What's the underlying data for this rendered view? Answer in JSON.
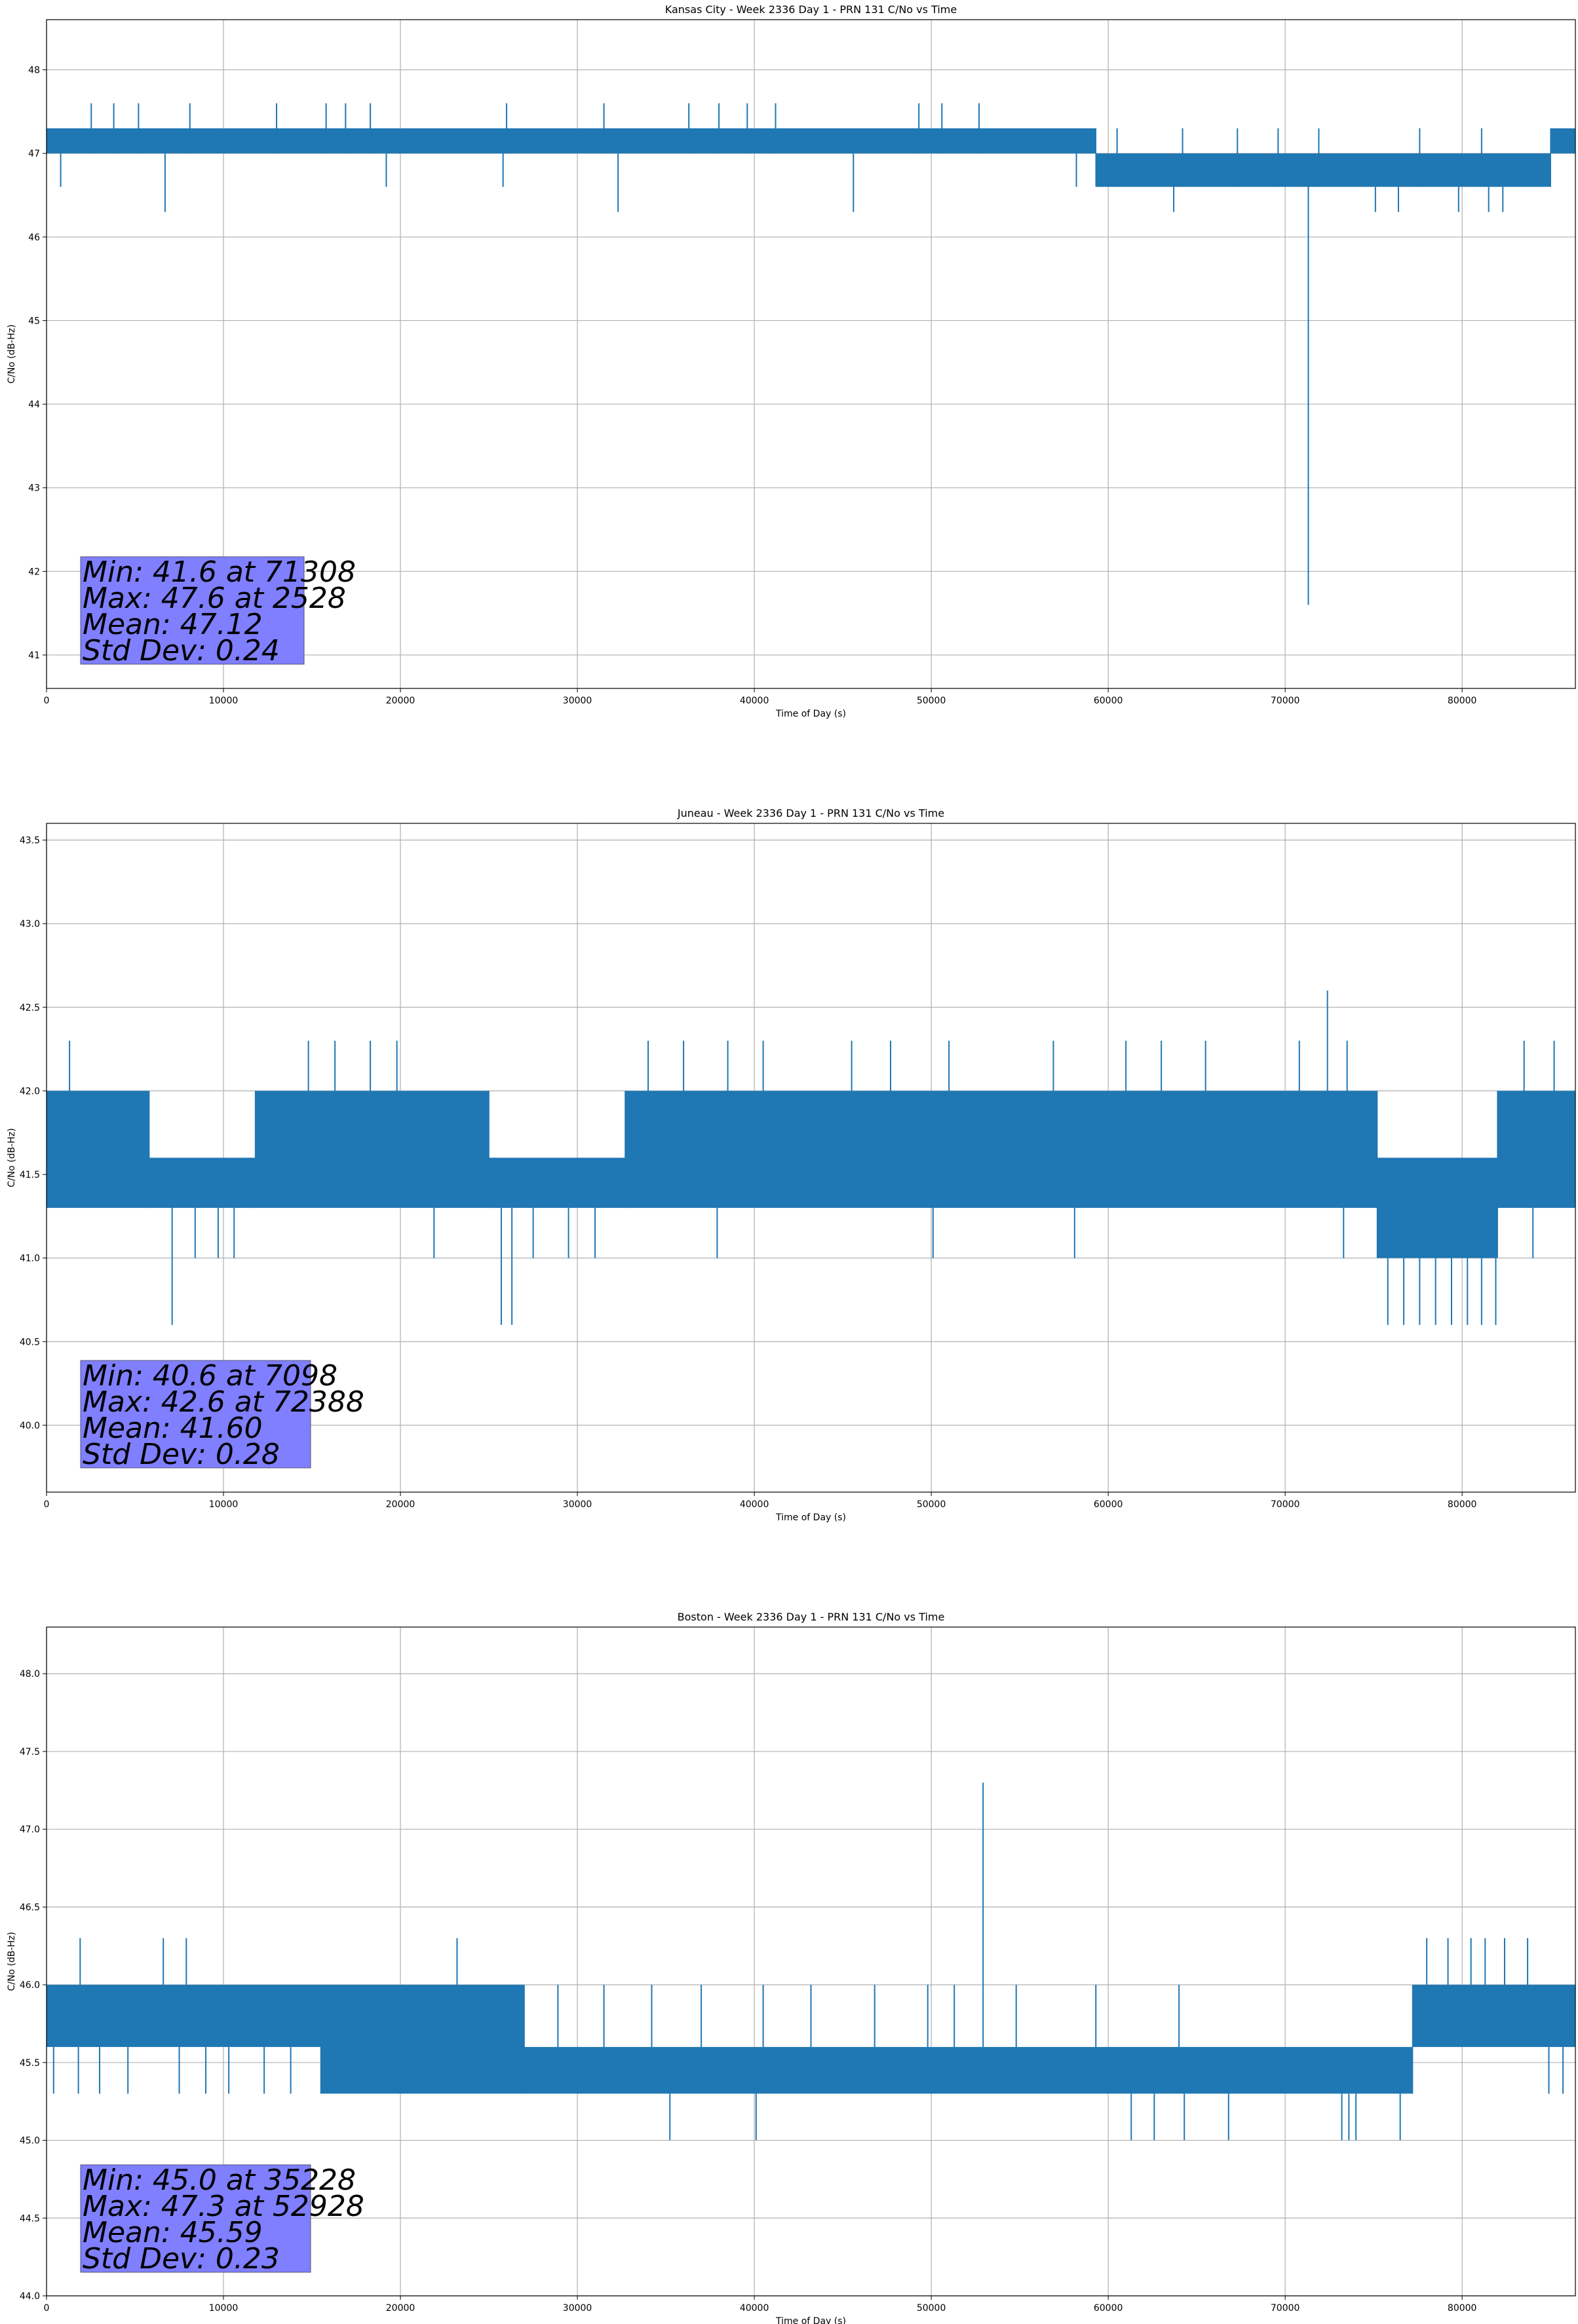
{
  "chart_data": [
    {
      "type": "line",
      "title": "Kansas City - Week 2336 Day 1 - PRN 131 C/No vs Time",
      "xlabel": "Time of Day (s)",
      "ylabel": "C/No (dB-Hz)",
      "xlim": [
        0,
        86400
      ],
      "ylim": [
        40.6,
        48.6
      ],
      "xticks": [
        0,
        10000,
        20000,
        30000,
        40000,
        50000,
        60000,
        70000,
        80000
      ],
      "yticks": [
        41,
        42,
        43,
        44,
        45,
        46,
        47,
        48
      ],
      "grid": true,
      "color": "#1f77b4",
      "bands": [
        {
          "x0": 0,
          "x1": 59300,
          "lo": 47.0,
          "hi": 47.3
        },
        {
          "x0": 59300,
          "x1": 85000,
          "lo": 46.6,
          "hi": 47.0
        },
        {
          "x0": 85000,
          "x1": 86400,
          "lo": 47.0,
          "hi": 47.3
        }
      ],
      "spikes": [
        {
          "x": 2528,
          "lo": 47.0,
          "hi": 47.6
        },
        {
          "x": 3800,
          "lo": 47.0,
          "hi": 47.6
        },
        {
          "x": 5200,
          "lo": 47.0,
          "hi": 47.6
        },
        {
          "x": 8100,
          "lo": 47.0,
          "hi": 47.6
        },
        {
          "x": 13000,
          "lo": 47.0,
          "hi": 47.6
        },
        {
          "x": 15800,
          "lo": 47.0,
          "hi": 47.6
        },
        {
          "x": 16900,
          "lo": 47.0,
          "hi": 47.6
        },
        {
          "x": 18300,
          "lo": 47.0,
          "hi": 47.6
        },
        {
          "x": 26000,
          "lo": 47.0,
          "hi": 47.6
        },
        {
          "x": 31500,
          "lo": 47.0,
          "hi": 47.6
        },
        {
          "x": 36300,
          "lo": 47.0,
          "hi": 47.6
        },
        {
          "x": 38000,
          "lo": 47.0,
          "hi": 47.6
        },
        {
          "x": 39600,
          "lo": 47.0,
          "hi": 47.6
        },
        {
          "x": 41200,
          "lo": 47.0,
          "hi": 47.6
        },
        {
          "x": 49300,
          "lo": 47.0,
          "hi": 47.6
        },
        {
          "x": 50600,
          "lo": 47.0,
          "hi": 47.6
        },
        {
          "x": 52700,
          "lo": 47.0,
          "hi": 47.6
        },
        {
          "x": 800,
          "lo": 46.6,
          "hi": 47.0
        },
        {
          "x": 6700,
          "lo": 46.3,
          "hi": 47.0
        },
        {
          "x": 19200,
          "lo": 46.6,
          "hi": 47.0
        },
        {
          "x": 25800,
          "lo": 46.6,
          "hi": 47.0
        },
        {
          "x": 32300,
          "lo": 46.3,
          "hi": 47.0
        },
        {
          "x": 45600,
          "lo": 46.3,
          "hi": 47.0
        },
        {
          "x": 58200,
          "lo": 46.6,
          "hi": 47.0
        },
        {
          "x": 63700,
          "lo": 46.3,
          "hi": 47.0
        },
        {
          "x": 71308,
          "lo": 41.6,
          "hi": 47.0
        },
        {
          "x": 75100,
          "lo": 46.3,
          "hi": 46.6
        },
        {
          "x": 76400,
          "lo": 46.3,
          "hi": 46.6
        },
        {
          "x": 79800,
          "lo": 46.3,
          "hi": 46.6
        },
        {
          "x": 81500,
          "lo": 46.3,
          "hi": 46.6
        },
        {
          "x": 82300,
          "lo": 46.3,
          "hi": 46.6
        },
        {
          "x": 60500,
          "lo": 46.6,
          "hi": 47.3
        },
        {
          "x": 64200,
          "lo": 46.6,
          "hi": 47.3
        },
        {
          "x": 67300,
          "lo": 46.6,
          "hi": 47.3
        },
        {
          "x": 69600,
          "lo": 46.6,
          "hi": 47.3
        },
        {
          "x": 71900,
          "lo": 46.6,
          "hi": 47.3
        },
        {
          "x": 77600,
          "lo": 46.6,
          "hi": 47.3
        },
        {
          "x": 81100,
          "lo": 46.6,
          "hi": 47.3
        }
      ],
      "stats": [
        "Min: 41.6 at 71308",
        "Max: 47.6 at 2528",
        "Mean: 47.12",
        "Std Dev: 0.24"
      ]
    },
    {
      "type": "line",
      "title": "Juneau - Week 2336 Day 1 - PRN 131 C/No vs Time",
      "xlabel": "Time of Day (s)",
      "ylabel": "C/No (dB-Hz)",
      "xlim": [
        0,
        86400
      ],
      "ylim": [
        39.6,
        43.6
      ],
      "xticks": [
        0,
        10000,
        20000,
        30000,
        40000,
        50000,
        60000,
        70000,
        80000
      ],
      "yticks": [
        40.0,
        40.5,
        41.0,
        41.5,
        42.0,
        42.5,
        43.0,
        43.5
      ],
      "grid": true,
      "color": "#1f77b4",
      "bands": [
        {
          "x0": 0,
          "x1": 5800,
          "lo": 41.3,
          "hi": 42.0
        },
        {
          "x0": 5800,
          "x1": 11800,
          "lo": 41.3,
          "hi": 41.6
        },
        {
          "x0": 11800,
          "x1": 25000,
          "lo": 41.3,
          "hi": 42.0
        },
        {
          "x0": 25000,
          "x1": 32700,
          "lo": 41.3,
          "hi": 41.6
        },
        {
          "x0": 32700,
          "x1": 75200,
          "lo": 41.3,
          "hi": 42.0
        },
        {
          "x0": 75200,
          "x1": 82000,
          "lo": 41.0,
          "hi": 41.6
        },
        {
          "x0": 82000,
          "x1": 86400,
          "lo": 41.3,
          "hi": 42.0
        }
      ],
      "spikes": [
        {
          "x": 1300,
          "lo": 42.0,
          "hi": 42.3
        },
        {
          "x": 14800,
          "lo": 42.0,
          "hi": 42.3
        },
        {
          "x": 16300,
          "lo": 42.0,
          "hi": 42.3
        },
        {
          "x": 18300,
          "lo": 42.0,
          "hi": 42.3
        },
        {
          "x": 19800,
          "lo": 42.0,
          "hi": 42.3
        },
        {
          "x": 34000,
          "lo": 42.0,
          "hi": 42.3
        },
        {
          "x": 36000,
          "lo": 42.0,
          "hi": 42.3
        },
        {
          "x": 38500,
          "lo": 42.0,
          "hi": 42.3
        },
        {
          "x": 40500,
          "lo": 42.0,
          "hi": 42.3
        },
        {
          "x": 45500,
          "lo": 42.0,
          "hi": 42.3
        },
        {
          "x": 47700,
          "lo": 42.0,
          "hi": 42.3
        },
        {
          "x": 51000,
          "lo": 42.0,
          "hi": 42.3
        },
        {
          "x": 56900,
          "lo": 42.0,
          "hi": 42.3
        },
        {
          "x": 61000,
          "lo": 42.0,
          "hi": 42.3
        },
        {
          "x": 63000,
          "lo": 42.0,
          "hi": 42.3
        },
        {
          "x": 65500,
          "lo": 42.0,
          "hi": 42.3
        },
        {
          "x": 70800,
          "lo": 42.0,
          "hi": 42.3
        },
        {
          "x": 72388,
          "lo": 42.0,
          "hi": 42.6
        },
        {
          "x": 73500,
          "lo": 42.0,
          "hi": 42.3
        },
        {
          "x": 83500,
          "lo": 42.0,
          "hi": 42.3
        },
        {
          "x": 85200,
          "lo": 42.0,
          "hi": 42.3
        },
        {
          "x": 7098,
          "lo": 40.6,
          "hi": 41.3
        },
        {
          "x": 8400,
          "lo": 41.0,
          "hi": 41.3
        },
        {
          "x": 9700,
          "lo": 41.0,
          "hi": 41.3
        },
        {
          "x": 10600,
          "lo": 41.0,
          "hi": 41.3
        },
        {
          "x": 21900,
          "lo": 41.0,
          "hi": 41.3
        },
        {
          "x": 25700,
          "lo": 40.6,
          "hi": 41.3
        },
        {
          "x": 26300,
          "lo": 40.6,
          "hi": 41.3
        },
        {
          "x": 27500,
          "lo": 41.0,
          "hi": 41.3
        },
        {
          "x": 29500,
          "lo": 41.0,
          "hi": 41.3
        },
        {
          "x": 31000,
          "lo": 41.0,
          "hi": 41.3
        },
        {
          "x": 37900,
          "lo": 41.0,
          "hi": 41.3
        },
        {
          "x": 50100,
          "lo": 41.0,
          "hi": 41.3
        },
        {
          "x": 58100,
          "lo": 41.0,
          "hi": 41.3
        },
        {
          "x": 73300,
          "lo": 41.0,
          "hi": 41.3
        },
        {
          "x": 75800,
          "lo": 40.6,
          "hi": 41.0
        },
        {
          "x": 76700,
          "lo": 40.6,
          "hi": 41.0
        },
        {
          "x": 77600,
          "lo": 40.6,
          "hi": 41.0
        },
        {
          "x": 78500,
          "lo": 40.6,
          "hi": 41.0
        },
        {
          "x": 79400,
          "lo": 40.6,
          "hi": 41.0
        },
        {
          "x": 80300,
          "lo": 40.6,
          "hi": 41.0
        },
        {
          "x": 81100,
          "lo": 40.6,
          "hi": 41.0
        },
        {
          "x": 81900,
          "lo": 40.6,
          "hi": 41.0
        },
        {
          "x": 84000,
          "lo": 41.0,
          "hi": 41.3
        }
      ],
      "stats": [
        "Min: 40.6 at 7098",
        "Max: 42.6 at 72388",
        "Mean: 41.60",
        "Std Dev: 0.28"
      ]
    },
    {
      "type": "line",
      "title": "Boston - Week 2336 Day 1 - PRN 131 C/No vs Time",
      "xlabel": "Time of Day (s)",
      "ylabel": "C/No (dB-Hz)",
      "xlim": [
        0,
        86400
      ],
      "ylim": [
        44.0,
        48.3
      ],
      "xticks": [
        0,
        10000,
        20000,
        30000,
        40000,
        50000,
        60000,
        70000,
        80000
      ],
      "yticks": [
        44.0,
        44.5,
        45.0,
        45.5,
        46.0,
        46.5,
        47.0,
        47.5,
        48.0
      ],
      "grid": true,
      "color": "#1f77b4",
      "bands": [
        {
          "x0": 0,
          "x1": 15500,
          "lo": 45.6,
          "hi": 46.0
        },
        {
          "x0": 15500,
          "x1": 27000,
          "lo": 45.3,
          "hi": 46.0
        },
        {
          "x0": 27000,
          "x1": 77200,
          "lo": 45.3,
          "hi": 45.6
        },
        {
          "x0": 77200,
          "x1": 86400,
          "lo": 45.6,
          "hi": 46.0
        }
      ],
      "spikes": [
        {
          "x": 400,
          "lo": 45.3,
          "hi": 45.6
        },
        {
          "x": 1800,
          "lo": 45.3,
          "hi": 45.6
        },
        {
          "x": 3000,
          "lo": 45.3,
          "hi": 45.6
        },
        {
          "x": 4600,
          "lo": 45.3,
          "hi": 45.6
        },
        {
          "x": 7500,
          "lo": 45.3,
          "hi": 45.6
        },
        {
          "x": 9000,
          "lo": 45.3,
          "hi": 45.6
        },
        {
          "x": 10300,
          "lo": 45.3,
          "hi": 45.6
        },
        {
          "x": 12300,
          "lo": 45.3,
          "hi": 45.6
        },
        {
          "x": 13800,
          "lo": 45.3,
          "hi": 45.6
        },
        {
          "x": 1900,
          "lo": 46.0,
          "hi": 46.3
        },
        {
          "x": 6600,
          "lo": 46.0,
          "hi": 46.3
        },
        {
          "x": 7900,
          "lo": 46.0,
          "hi": 46.3
        },
        {
          "x": 23200,
          "lo": 46.0,
          "hi": 46.3
        },
        {
          "x": 28900,
          "lo": 45.6,
          "hi": 46.0
        },
        {
          "x": 31500,
          "lo": 45.6,
          "hi": 46.0
        },
        {
          "x": 34200,
          "lo": 45.6,
          "hi": 46.0
        },
        {
          "x": 37000,
          "lo": 45.6,
          "hi": 46.0
        },
        {
          "x": 40500,
          "lo": 45.6,
          "hi": 46.0
        },
        {
          "x": 43200,
          "lo": 45.6,
          "hi": 46.0
        },
        {
          "x": 46800,
          "lo": 45.6,
          "hi": 46.0
        },
        {
          "x": 49800,
          "lo": 45.6,
          "hi": 46.0
        },
        {
          "x": 51300,
          "lo": 45.6,
          "hi": 46.0
        },
        {
          "x": 52928,
          "lo": 45.6,
          "hi": 47.3
        },
        {
          "x": 54800,
          "lo": 45.6,
          "hi": 46.0
        },
        {
          "x": 59300,
          "lo": 45.6,
          "hi": 46.0
        },
        {
          "x": 64000,
          "lo": 45.6,
          "hi": 46.0
        },
        {
          "x": 35228,
          "lo": 45.0,
          "hi": 45.3
        },
        {
          "x": 40100,
          "lo": 45.0,
          "hi": 45.3
        },
        {
          "x": 61300,
          "lo": 45.0,
          "hi": 45.3
        },
        {
          "x": 62600,
          "lo": 45.0,
          "hi": 45.3
        },
        {
          "x": 64300,
          "lo": 45.0,
          "hi": 45.3
        },
        {
          "x": 66800,
          "lo": 45.0,
          "hi": 45.3
        },
        {
          "x": 73200,
          "lo": 45.0,
          "hi": 45.3
        },
        {
          "x": 73600,
          "lo": 45.0,
          "hi": 45.3
        },
        {
          "x": 74000,
          "lo": 45.0,
          "hi": 45.3
        },
        {
          "x": 76500,
          "lo": 45.0,
          "hi": 45.3
        },
        {
          "x": 78000,
          "lo": 46.0,
          "hi": 46.3
        },
        {
          "x": 79200,
          "lo": 46.0,
          "hi": 46.3
        },
        {
          "x": 80500,
          "lo": 46.0,
          "hi": 46.3
        },
        {
          "x": 81300,
          "lo": 46.0,
          "hi": 46.3
        },
        {
          "x": 82400,
          "lo": 46.0,
          "hi": 46.3
        },
        {
          "x": 83700,
          "lo": 46.0,
          "hi": 46.3
        },
        {
          "x": 84900,
          "lo": 45.3,
          "hi": 45.6
        },
        {
          "x": 85700,
          "lo": 45.3,
          "hi": 45.6
        }
      ],
      "stats": [
        "Min: 45.0 at 35228",
        "Max: 47.3 at 52928",
        "Mean: 45.59",
        "Std Dev: 0.23"
      ]
    }
  ]
}
